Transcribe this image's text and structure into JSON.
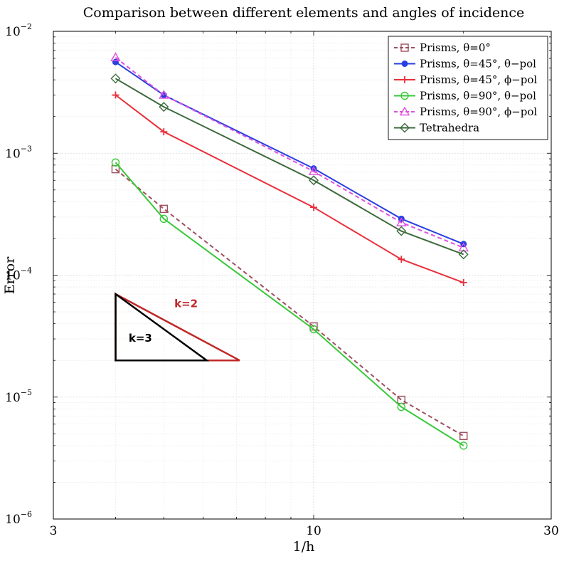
{
  "chart_data": {
    "type": "line",
    "title": "Comparison between different elements and angles of incidence",
    "xlabel": "1/h",
    "ylabel": "Error",
    "xscale": "log",
    "yscale": "log",
    "xlim": [
      3,
      30
    ],
    "ylim": [
      1e-06,
      0.01
    ],
    "x_ticks": [
      {
        "value": 3,
        "label": "3"
      },
      {
        "value": 10,
        "label": "10"
      },
      {
        "value": 30,
        "label": "30"
      }
    ],
    "y_ticks": [
      {
        "value": 1e-06,
        "base": "10",
        "exp": "−6"
      },
      {
        "value": 1e-05,
        "base": "10",
        "exp": "−5"
      },
      {
        "value": 0.0001,
        "base": "10",
        "exp": "−4"
      },
      {
        "value": 0.001,
        "base": "10",
        "exp": "−3"
      },
      {
        "value": 0.01,
        "base": "10",
        "exp": "−2"
      }
    ],
    "grid": true,
    "legend_position": "top-right",
    "x": [
      4,
      5,
      10,
      15,
      20
    ],
    "series": [
      {
        "name": "Prisms, θ=0°",
        "color": "#a05060",
        "marker": "square",
        "dash": "dashed",
        "values": [
          0.00074,
          0.00035,
          3.8e-05,
          9.5e-06,
          4.8e-06
        ]
      },
      {
        "name": "Prisms, θ=45°, θ−pol",
        "color": "#2a3fe0",
        "marker": "dot",
        "dash": "solid",
        "values": [
          0.0056,
          0.003,
          0.00075,
          0.00029,
          0.00018
        ]
      },
      {
        "name": "Prisms, θ=45°, ϕ−pol",
        "color": "#e8303c",
        "marker": "plus",
        "dash": "solid",
        "values": [
          0.003,
          0.0015,
          0.00036,
          0.000135,
          8.7e-05
        ]
      },
      {
        "name": "Prisms, θ=90°, θ−pol",
        "color": "#38c838",
        "marker": "circle",
        "dash": "solid",
        "values": [
          0.00084,
          0.00029,
          3.6e-05,
          8.3e-06,
          4e-06
        ]
      },
      {
        "name": "Prisms, θ=90°, ϕ−pol",
        "color": "#e050e0",
        "marker": "triangle",
        "dash": "dashed",
        "values": [
          0.0061,
          0.003,
          0.00071,
          0.00027,
          0.000168
        ]
      },
      {
        "name": "Tetrahedra",
        "color": "#3c6a3c",
        "marker": "diamond",
        "dash": "solid",
        "values": [
          0.0041,
          0.0024,
          0.0006,
          0.00023,
          0.000148
        ]
      }
    ],
    "annotations": [
      {
        "label": "k=2",
        "color": "#c02828",
        "points": [
          [
            4,
            7e-05
          ],
          [
            7.1,
            2e-05
          ],
          [
            4,
            2e-05
          ]
        ]
      },
      {
        "label": "k=3",
        "color": "#000000",
        "points": [
          [
            4,
            7e-05
          ],
          [
            6.1,
            2e-05
          ],
          [
            4,
            2e-05
          ]
        ]
      }
    ]
  }
}
